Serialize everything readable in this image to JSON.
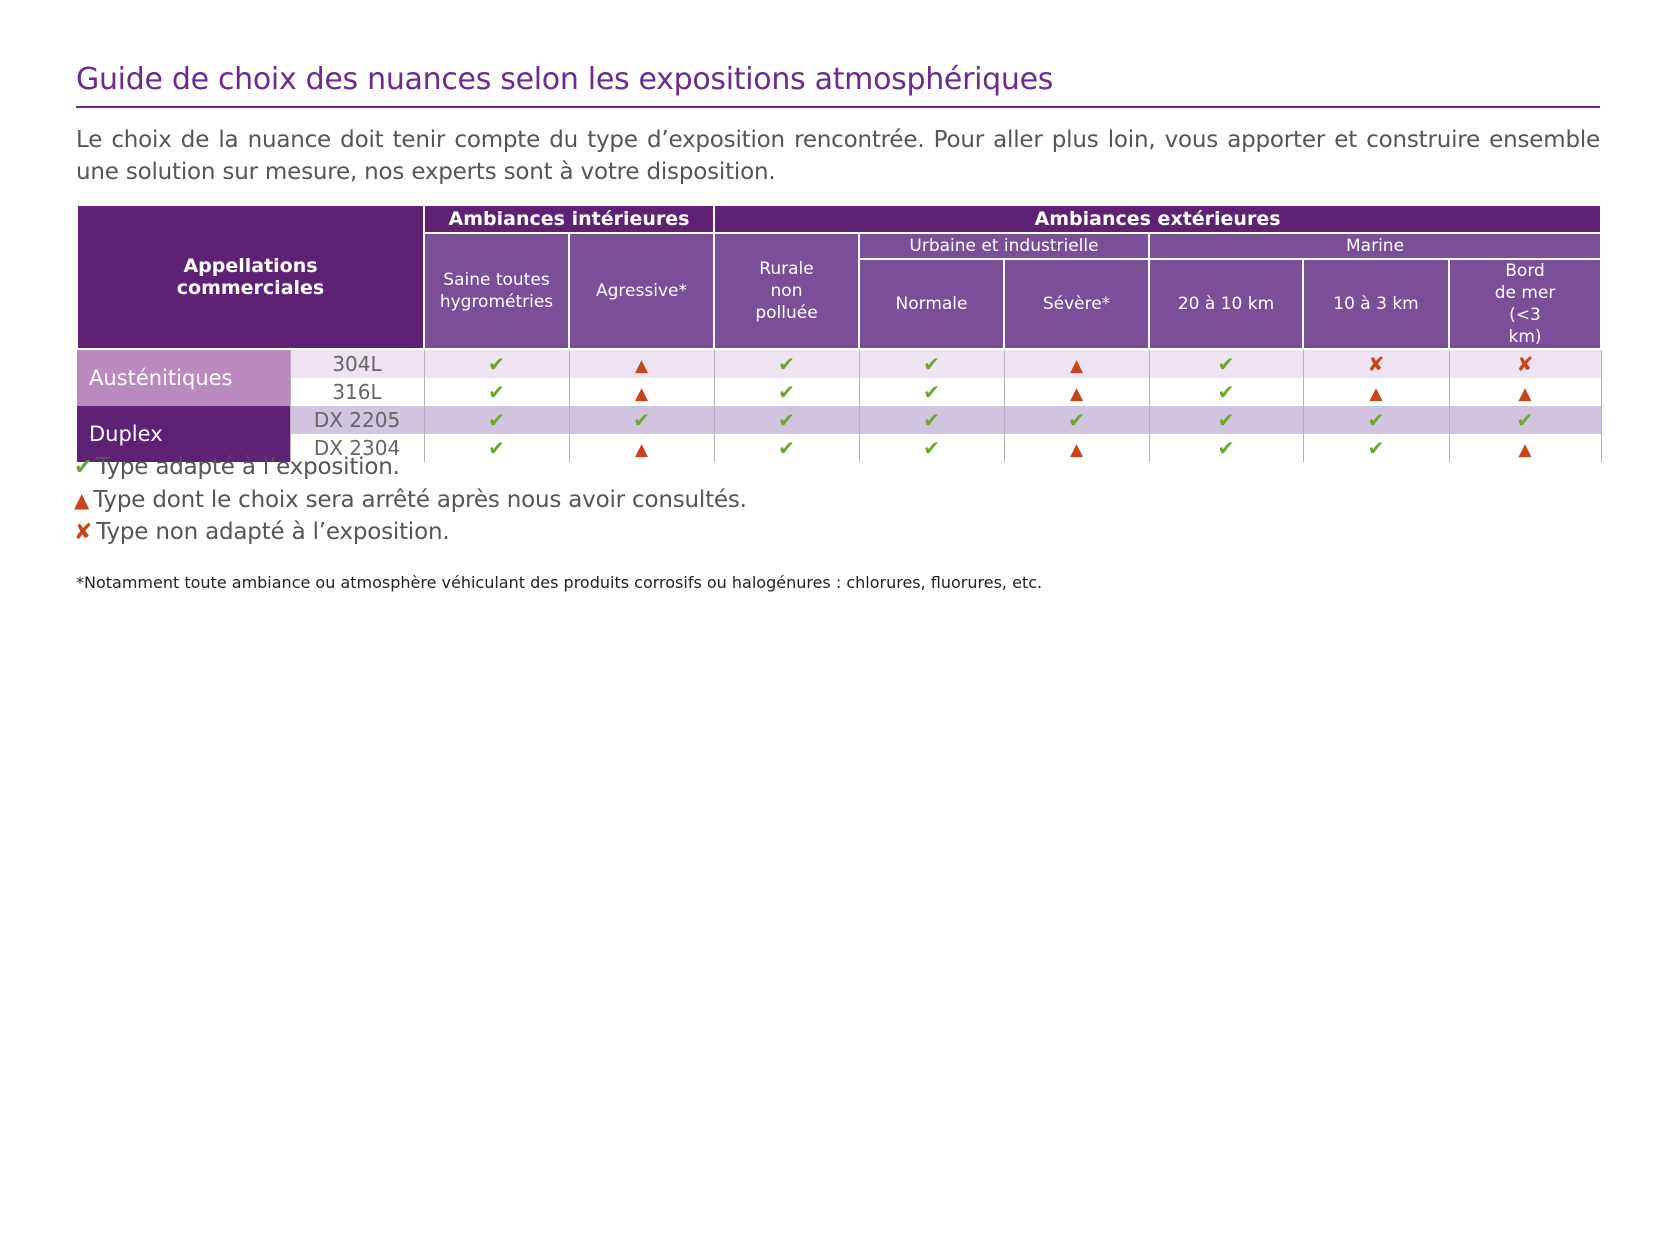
{
  "title": "Guide de choix des nuances selon les expositions atmosphériques",
  "intro": "Le choix de la nuance doit tenir compte du type d’exposition rencontrée. Pour aller plus loin, vous apporter et construire ensemble une solution sur mesure, nos experts sont à votre disposition.",
  "table": {
    "appellations_label": "Appellations commerciales",
    "group_interior": "Ambiances intérieures",
    "group_exterior": "Ambiances extérieures",
    "sub_urban": "Urbaine et industrielle",
    "sub_marine": "Marine",
    "columns": [
      "Saine toutes hygrométries",
      "Agressive*",
      "Rurale non polluée",
      "Normale",
      "Sévère*",
      "20 à 10 km",
      "10 à 3 km",
      "Bord de mer (<3 km)"
    ],
    "families": [
      {
        "name": "Austénitiques",
        "color": "#bb89bf"
      },
      {
        "name": "Duplex",
        "color": "#5e2174"
      }
    ],
    "rows": [
      {
        "grade": "304L",
        "values": [
          "ok",
          "warn",
          "ok",
          "ok",
          "warn",
          "ok",
          "no",
          "no"
        ]
      },
      {
        "grade": "316L",
        "values": [
          "ok",
          "warn",
          "ok",
          "ok",
          "warn",
          "ok",
          "warn",
          "warn"
        ]
      },
      {
        "grade": "DX 2205",
        "values": [
          "ok",
          "ok",
          "ok",
          "ok",
          "ok",
          "ok",
          "ok",
          "ok"
        ]
      },
      {
        "grade": "DX 2304",
        "values": [
          "ok",
          "warn",
          "ok",
          "ok",
          "warn",
          "ok",
          "ok",
          "warn"
        ]
      }
    ]
  },
  "symbols": {
    "ok": "✔",
    "warn": "▲",
    "no": "✘"
  },
  "legend": {
    "ok": "Type adapté à l’exposition.",
    "warn": "Type dont le choix sera arrêté après nous avoir consultés.",
    "no": "Type non adapté à l’exposition."
  },
  "footnote": "*Notamment toute ambiance ou atmosphère véhiculant des produits corrosifs ou halogénures : chlorures, fluorures, etc.",
  "colors": {
    "purple_dark": "#5e2174",
    "purple_mid": "#7c4e97",
    "green": "#6da52f",
    "orange_red": "#c7451c"
  }
}
